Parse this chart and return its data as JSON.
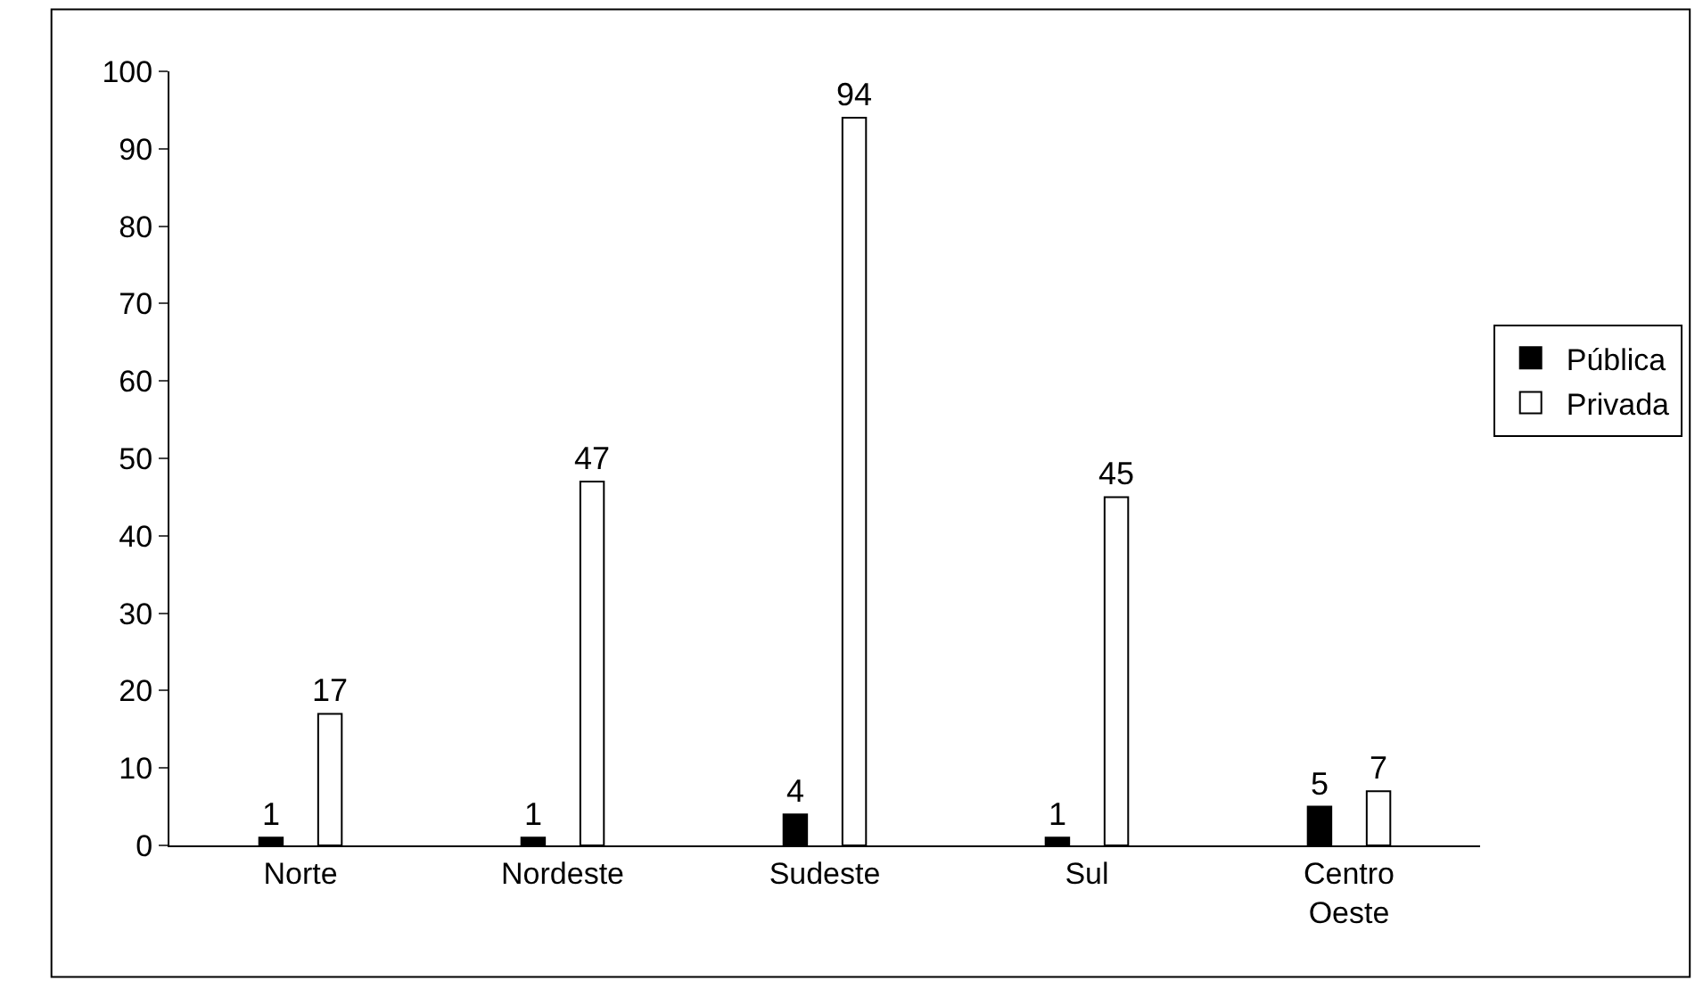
{
  "chart_data": {
    "type": "bar",
    "categories": [
      "Norte",
      "Nordeste",
      "Sudeste",
      "Sul",
      "Centro Oeste"
    ],
    "series": [
      {
        "name": "Pública",
        "color": "#000000",
        "values": [
          1,
          1,
          4,
          1,
          5
        ]
      },
      {
        "name": "Privada",
        "color": "#ffffff",
        "values": [
          17,
          47,
          94,
          45,
          7
        ]
      }
    ],
    "ylim": [
      0,
      100
    ],
    "yticks": [
      0,
      10,
      20,
      30,
      40,
      50,
      60,
      70,
      80,
      90,
      100
    ],
    "legend": "right",
    "data_labels": true
  }
}
